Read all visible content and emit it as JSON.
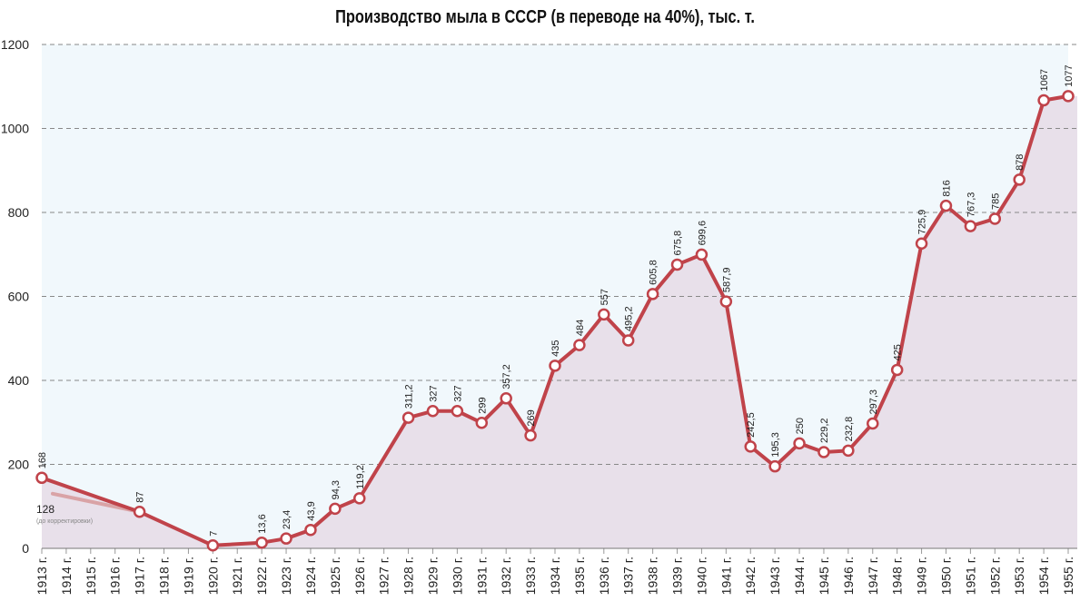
{
  "chart_data": {
    "type": "line",
    "title": "Производство мыла в СССР (в переводе на 40%), тыс. т.",
    "xlabel": "",
    "ylabel": "",
    "ylim": [
      0,
      1200
    ],
    "yticks": [
      0,
      200,
      400,
      600,
      800,
      1000,
      1200
    ],
    "grid": true,
    "categories": [
      "1913 г.",
      "1914 г.",
      "1915 г.",
      "1916 г.",
      "1917 г.",
      "1918 г.",
      "1919 г.",
      "1920 г.",
      "1921 г.",
      "1922 г.",
      "1923 г.",
      "1924 г.",
      "1925 г.",
      "1926 г.",
      "1927 г.",
      "1928 г.",
      "1929 г.",
      "1930 г.",
      "1931 г.",
      "1932 г.",
      "1933 г.",
      "1934 г.",
      "1935 г.",
      "1936 г.",
      "1937 г.",
      "1938 г.",
      "1939 г.",
      "1940 г.",
      "1941 г.",
      "1942 г.",
      "1943 г.",
      "1944 г.",
      "1945 г.",
      "1946 г.",
      "1947 г.",
      "1948 г.",
      "1949 г.",
      "1950 г.",
      "1951 г.",
      "1952 г.",
      "1953 г.",
      "1954 г.",
      "1955 г."
    ],
    "series": [
      {
        "points": [
          {
            "x": "1913 г.",
            "y": 168,
            "label": "168"
          },
          {
            "x": "1917 г.",
            "y": 87,
            "label": "87"
          },
          {
            "x": "1920 г.",
            "y": 7,
            "label": "7"
          },
          {
            "x": "1922 г.",
            "y": 13.6,
            "label": "13,6"
          },
          {
            "x": "1923 г.",
            "y": 23.4,
            "label": "23,4"
          },
          {
            "x": "1924 г.",
            "y": 43.9,
            "label": "43,9"
          },
          {
            "x": "1925 г.",
            "y": 94.3,
            "label": "94,3"
          },
          {
            "x": "1926 г.",
            "y": 119.2,
            "label": "119,2"
          },
          {
            "x": "1928 г.",
            "y": 311.2,
            "label": "311,2"
          },
          {
            "x": "1929 г.",
            "y": 327,
            "label": "327"
          },
          {
            "x": "1930 г.",
            "y": 327,
            "label": "327"
          },
          {
            "x": "1931 г.",
            "y": 299,
            "label": "299"
          },
          {
            "x": "1932 г.",
            "y": 357.2,
            "label": "357,2"
          },
          {
            "x": "1933 г.",
            "y": 269,
            "label": "269"
          },
          {
            "x": "1934 г.",
            "y": 435,
            "label": "435"
          },
          {
            "x": "1935 г.",
            "y": 484,
            "label": "484"
          },
          {
            "x": "1936 г.",
            "y": 557,
            "label": "557"
          },
          {
            "x": "1937 г.",
            "y": 495.2,
            "label": "495,2"
          },
          {
            "x": "1938 г.",
            "y": 605.8,
            "label": "605,8"
          },
          {
            "x": "1939 г.",
            "y": 675.8,
            "label": "675,8"
          },
          {
            "x": "1940 г.",
            "y": 699.6,
            "label": "699,6"
          },
          {
            "x": "1941 г.",
            "y": 587.9,
            "label": "587,9"
          },
          {
            "x": "1942 г.",
            "y": 242.5,
            "label": "242,5"
          },
          {
            "x": "1943 г.",
            "y": 195.3,
            "label": "195,3"
          },
          {
            "x": "1944 г.",
            "y": 250,
            "label": "250"
          },
          {
            "x": "1945 г.",
            "y": 229.2,
            "label": "229,2"
          },
          {
            "x": "1946 г.",
            "y": 232.8,
            "label": "232,8"
          },
          {
            "x": "1947 г.",
            "y": 297.3,
            "label": "297,3"
          },
          {
            "x": "1948 г.",
            "y": 425,
            "label": "425"
          },
          {
            "x": "1949 г.",
            "y": 725.9,
            "label": "725,9"
          },
          {
            "x": "1950 г.",
            "y": 816,
            "label": "816"
          },
          {
            "x": "1951 г.",
            "y": 767.3,
            "label": "767,3"
          },
          {
            "x": "1952 г.",
            "y": 785,
            "label": "785"
          },
          {
            "x": "1953 г.",
            "y": 878,
            "label": "878"
          },
          {
            "x": "1954 г.",
            "y": 1067,
            "label": "1067"
          },
          {
            "x": "1955 г.",
            "y": 1077,
            "label": "1077"
          }
        ]
      },
      {
        "variant": "pre-correction",
        "points": [
          {
            "x": "1913 г.",
            "y": 128,
            "label": "128"
          },
          {
            "x": "1917 г.",
            "y": 87,
            "label": ""
          }
        ],
        "note": "(до корректировки)"
      }
    ],
    "colors": {
      "line": "#c0434a",
      "marker_fill": "#ffffff",
      "pre_correction_line": "#d9a3a6",
      "area_fill": "#e8e0ea",
      "plot_bg": "#f1f8fc",
      "grid": "#888888"
    }
  }
}
